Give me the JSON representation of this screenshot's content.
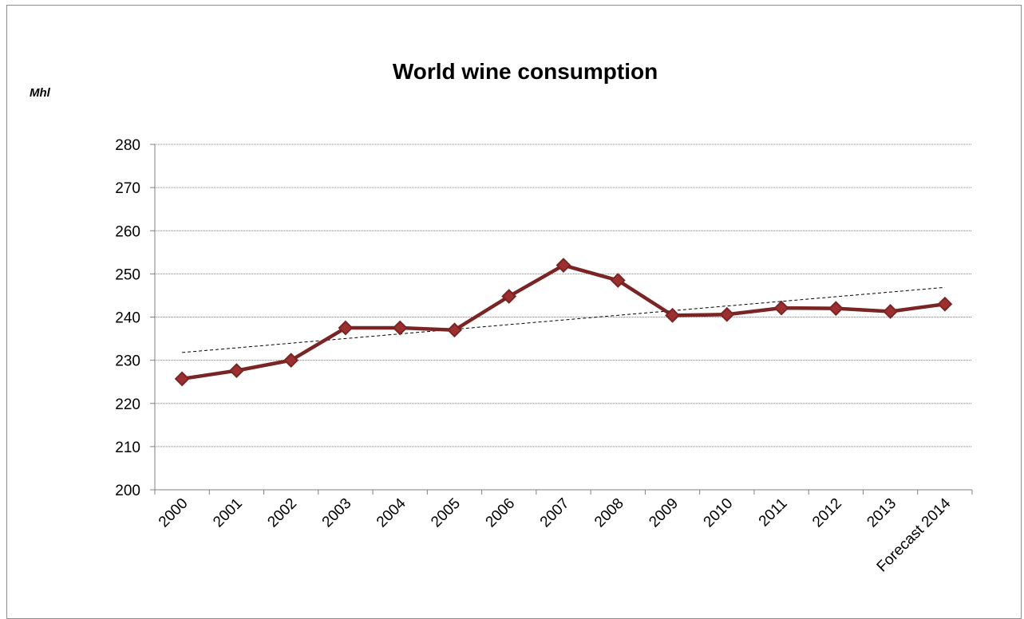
{
  "chart_data": {
    "type": "line",
    "title": "World wine consumption",
    "ylabel": "Mhl",
    "xlabel": "",
    "categories": [
      "2000",
      "2001",
      "2002",
      "2003",
      "2004",
      "2005",
      "2006",
      "2007",
      "2008",
      "2009",
      "2010",
      "2011",
      "2012",
      "2013",
      "Forecast 2014"
    ],
    "series": [
      {
        "values": [
          225.7,
          227.6,
          230.0,
          237.5,
          237.5,
          237.0,
          244.8,
          252.0,
          248.5,
          240.4,
          240.6,
          242.1,
          242.0,
          241.3,
          243.0
        ],
        "color": "#7a2424",
        "marker": "diamond"
      }
    ],
    "trendline": {
      "type": "linear",
      "style": "dashed",
      "color": "#000000"
    },
    "ylim": [
      200,
      280
    ],
    "yticks": [
      200,
      210,
      220,
      230,
      240,
      250,
      260,
      270,
      280
    ],
    "grid": true,
    "legend": "none"
  }
}
